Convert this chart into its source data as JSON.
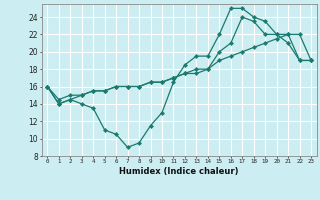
{
  "xlabel": "Humidex (Indice chaleur)",
  "bg_color": "#cceef2",
  "grid_color": "#ffffff",
  "line_color": "#1a7a6e",
  "xlim": [
    -0.5,
    23.5
  ],
  "ylim": [
    8,
    25.5
  ],
  "yticks": [
    8,
    10,
    12,
    14,
    16,
    18,
    20,
    22,
    24
  ],
  "xticks": [
    0,
    1,
    2,
    3,
    4,
    5,
    6,
    7,
    8,
    9,
    10,
    11,
    12,
    13,
    14,
    15,
    16,
    17,
    18,
    19,
    20,
    21,
    22,
    23
  ],
  "curve1_x": [
    0,
    1,
    2,
    3,
    4,
    5,
    6,
    7,
    8,
    9,
    10,
    11,
    12,
    13,
    14,
    15,
    16,
    17,
    18,
    19,
    20,
    21,
    22,
    23
  ],
  "curve1_y": [
    16,
    14,
    14.5,
    14,
    13.5,
    11,
    10.5,
    9,
    9.5,
    11.5,
    13,
    16.5,
    18.5,
    19.5,
    19.5,
    22,
    25,
    25,
    24,
    23.5,
    22,
    21,
    19,
    19
  ],
  "curve2_x": [
    0,
    1,
    2,
    3,
    4,
    5,
    6,
    7,
    8,
    9,
    10,
    11,
    12,
    13,
    14,
    15,
    16,
    17,
    18,
    19,
    20,
    21,
    22,
    23
  ],
  "curve2_y": [
    16,
    14,
    14.5,
    15,
    15.5,
    15.5,
    16,
    16,
    16,
    16.5,
    16.5,
    17,
    17.5,
    18,
    18,
    20,
    21,
    24,
    23.5,
    22,
    22,
    22,
    19,
    19
  ],
  "curve3_x": [
    0,
    1,
    2,
    3,
    4,
    5,
    6,
    7,
    8,
    9,
    10,
    11,
    12,
    13,
    14,
    15,
    16,
    17,
    18,
    19,
    20,
    21,
    22,
    23
  ],
  "curve3_y": [
    16,
    14.5,
    15,
    15,
    15.5,
    15.5,
    16,
    16,
    16,
    16.5,
    16.5,
    17,
    17.5,
    17.5,
    18,
    19,
    19.5,
    20,
    20.5,
    21,
    21.5,
    22,
    22,
    19
  ]
}
